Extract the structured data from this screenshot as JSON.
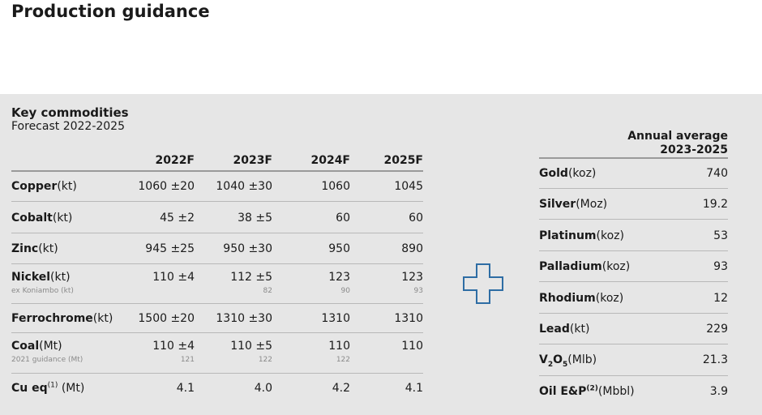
{
  "title": "Production guidance",
  "panel": {
    "title": "Key commodities",
    "subtitle": "Forecast 2022-2025"
  },
  "forecast_table": {
    "columns": [
      "2022F",
      "2023F",
      "2024F",
      "2025F"
    ],
    "rows": [
      {
        "name": "Copper",
        "unit": "(kt)",
        "values": [
          "1060 ±20",
          "1040 ±30",
          "1060",
          "1045"
        ]
      },
      {
        "name": "Cobalt",
        "unit": "(kt)",
        "values": [
          "45 ±2",
          "38 ±5",
          "60",
          "60"
        ]
      },
      {
        "name": "Zinc",
        "unit": "(kt)",
        "values": [
          "945 ±25",
          "950 ±30",
          "950",
          "890"
        ]
      },
      {
        "name": "Nickel",
        "unit": "(kt)",
        "values": [
          "110 ±4",
          "112 ±5",
          "123",
          "123"
        ],
        "note": {
          "label": "ex Koniambo (kt)",
          "values": [
            "",
            "82",
            "90",
            "93"
          ]
        }
      },
      {
        "name": "Ferrochrome",
        "unit": "(kt)",
        "values": [
          "1500 ±20",
          "1310 ±30",
          "1310",
          "1310"
        ]
      },
      {
        "name": "Coal",
        "unit": "(Mt)",
        "values": [
          "110 ±4",
          "110 ±5",
          "110",
          "110"
        ],
        "note": {
          "label": "2021 guidance (Mt)",
          "values": [
            "121",
            "122",
            "122",
            ""
          ]
        }
      },
      {
        "name": "Cu eq",
        "sup": "(1)",
        "unit": " (Mt)",
        "values": [
          "4.1",
          "4.0",
          "4.2",
          "4.1"
        ]
      }
    ]
  },
  "annual_table": {
    "header_line1": "Annual average",
    "header_line2": "2023-2025",
    "rows": [
      {
        "name": "Gold",
        "unit": "(koz)",
        "value": "740"
      },
      {
        "name": "Silver",
        "unit": "(Moz)",
        "value": "19.2"
      },
      {
        "name": "Platinum",
        "unit": "(koz)",
        "value": "53"
      },
      {
        "name": "Palladium",
        "unit": "(koz)",
        "value": "93"
      },
      {
        "name": "Rhodium",
        "unit": "(koz)",
        "value": "12"
      },
      {
        "name": "Lead",
        "unit": "(kt)",
        "value": "229"
      },
      {
        "name": "V",
        "sub1": "2",
        "mid": "O",
        "sub2": "5",
        "unit": "(Mlb)",
        "value": "21.3"
      },
      {
        "name": "Oil E&P",
        "sup": "(2)",
        "unit": "(Mbbl)",
        "value": "3.9"
      }
    ]
  },
  "colors": {
    "panel_bg": "#e6e6e6",
    "plus_icon": "#2e6da4"
  }
}
